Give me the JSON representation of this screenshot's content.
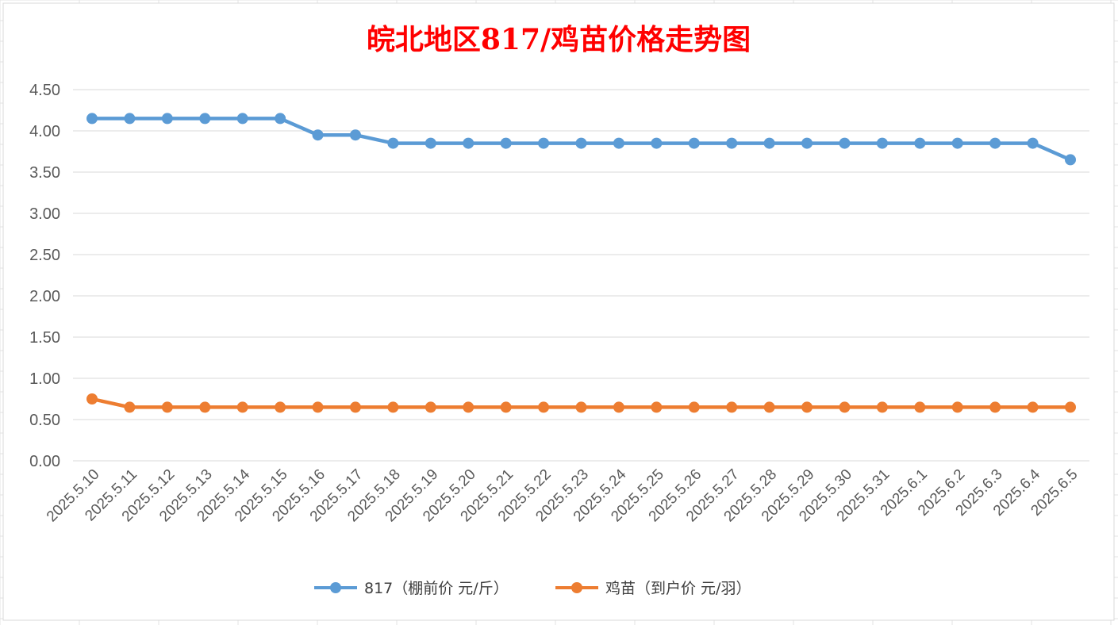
{
  "chart_data": {
    "type": "line",
    "title": "皖北地区817/鸡苗价格走势图",
    "xlabel": "",
    "ylabel": "",
    "ylim": [
      0,
      4.5
    ],
    "yticks": [
      "0.00",
      "0.50",
      "1.00",
      "1.50",
      "2.00",
      "2.50",
      "3.00",
      "3.50",
      "4.00",
      "4.50"
    ],
    "grid": true,
    "legend_position": "bottom",
    "categories": [
      "2025.5.10",
      "2025.5.11",
      "2025.5.12",
      "2025.5.13",
      "2025.5.14",
      "2025.5.15",
      "2025.5.16",
      "2025.5.17",
      "2025.5.18",
      "2025.5.19",
      "2025.5.20",
      "2025.5.21",
      "2025.5.22",
      "2025.5.23",
      "2025.5.24",
      "2025.5.25",
      "2025.5.26",
      "2025.5.27",
      "2025.5.28",
      "2025.5.29",
      "2025.5.30",
      "2025.5.31",
      "2025.6.1",
      "2025.6.2",
      "2025.6.3",
      "2025.6.4",
      "2025.6.5"
    ],
    "series": [
      {
        "name": "817（棚前价 元/斤）",
        "color": "#5b9bd5",
        "values": [
          4.15,
          4.15,
          4.15,
          4.15,
          4.15,
          4.15,
          3.95,
          3.95,
          3.85,
          3.85,
          3.85,
          3.85,
          3.85,
          3.85,
          3.85,
          3.85,
          3.85,
          3.85,
          3.85,
          3.85,
          3.85,
          3.85,
          3.85,
          3.85,
          3.85,
          3.85,
          3.65
        ]
      },
      {
        "name": "鸡苗（到户价 元/羽）",
        "color": "#ed7d31",
        "values": [
          0.75,
          0.65,
          0.65,
          0.65,
          0.65,
          0.65,
          0.65,
          0.65,
          0.65,
          0.65,
          0.65,
          0.65,
          0.65,
          0.65,
          0.65,
          0.65,
          0.65,
          0.65,
          0.65,
          0.65,
          0.65,
          0.65,
          0.65,
          0.65,
          0.65,
          0.65,
          0.65
        ]
      }
    ]
  }
}
